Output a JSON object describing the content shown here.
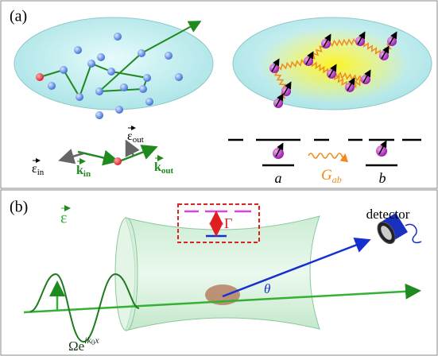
{
  "panel_a": {
    "label": "(a)",
    "epsilon_in": {
      "symbol": "ε",
      "sub": "in"
    },
    "k_in": {
      "symbol": "k",
      "sub": "in"
    },
    "epsilon_out": {
      "symbol": "ε",
      "sub": "out"
    },
    "k_out": {
      "symbol": "k",
      "sub": "out"
    },
    "level_a": "a",
    "coupling": {
      "symbol": "G",
      "sub": "ab"
    },
    "level_b": "b"
  },
  "panel_b": {
    "label": "(b)",
    "decay": "Γ",
    "detector": "detector",
    "polarization": "ε",
    "angle": "θ",
    "drive": {
      "base": "Ωe",
      "sup": "ik",
      "sup_sub": "0",
      "sup_tail": "x"
    }
  }
}
